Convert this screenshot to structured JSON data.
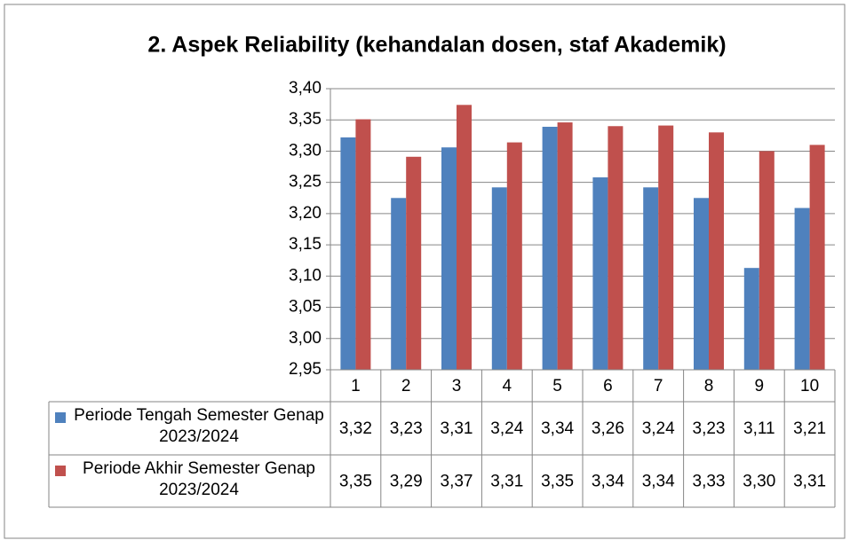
{
  "chart_data": {
    "type": "bar",
    "title": "2. Aspek Reliability (kehandalan dosen, staf Akademik)",
    "categories": [
      "1",
      "2",
      "3",
      "4",
      "5",
      "6",
      "7",
      "8",
      "9",
      "10"
    ],
    "series": [
      {
        "name": "Periode Tengah Semester Genap 2023/2024",
        "color": "#4f81bd",
        "values": [
          3.322,
          3.225,
          3.306,
          3.242,
          3.339,
          3.258,
          3.242,
          3.225,
          3.113,
          3.209
        ],
        "value_labels": [
          "3,32",
          "3,23",
          "3,31",
          "3,24",
          "3,34",
          "3,26",
          "3,24",
          "3,23",
          "3,11",
          "3,21"
        ]
      },
      {
        "name": "Periode Akhir Semester Genap 2023/2024",
        "color": "#c0504d",
        "values": [
          3.351,
          3.291,
          3.374,
          3.314,
          3.346,
          3.34,
          3.341,
          3.33,
          3.3,
          3.31
        ],
        "value_labels": [
          "3,35",
          "3,29",
          "3,37",
          "3,31",
          "3,35",
          "3,34",
          "3,34",
          "3,33",
          "3,30",
          "3,31"
        ]
      }
    ],
    "ylim": [
      2.95,
      3.4
    ],
    "yticks": [
      {
        "value": 2.95,
        "label": "2,95"
      },
      {
        "value": 3.0,
        "label": "3,00"
      },
      {
        "value": 3.05,
        "label": "3,05"
      },
      {
        "value": 3.1,
        "label": "3,10"
      },
      {
        "value": 3.15,
        "label": "3,15"
      },
      {
        "value": 3.2,
        "label": "3,20"
      },
      {
        "value": 3.25,
        "label": "3,25"
      },
      {
        "value": 3.3,
        "label": "3,30"
      },
      {
        "value": 3.35,
        "label": "3,35"
      },
      {
        "value": 3.4,
        "label": "3,40"
      }
    ],
    "grid": true
  }
}
